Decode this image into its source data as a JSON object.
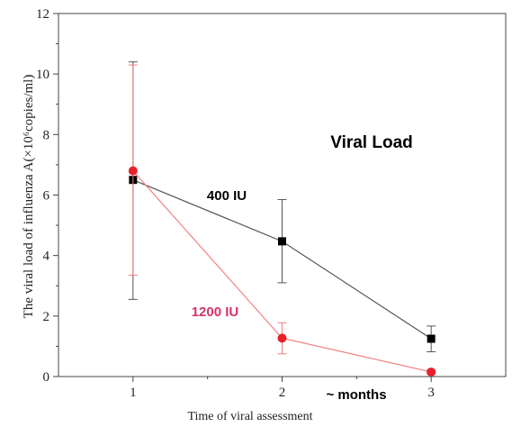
{
  "chart_data": {
    "type": "line",
    "title": "Viral Load",
    "xlabel": "Time of viral assessment",
    "ylabel": "The viral load of influenza A(×10⁶copies/ml)",
    "x_annotation": "~ months",
    "x": [
      1,
      2,
      3
    ],
    "xticks": [
      "1",
      "2",
      "3"
    ],
    "xlim": [
      0.5,
      3.5
    ],
    "ylim": [
      0,
      12
    ],
    "yticks": [
      "0",
      "2",
      "4",
      "6",
      "8",
      "10",
      "12"
    ],
    "grid": false,
    "series": [
      {
        "name": "400 IU",
        "color": "#000000",
        "line_color": "#555555",
        "marker": "square",
        "values": [
          6.5,
          4.47,
          1.25
        ],
        "error_low": [
          2.55,
          3.1,
          0.82
        ],
        "error_high": [
          10.4,
          5.85,
          1.67
        ]
      },
      {
        "name": "1200 IU",
        "color": "#e8202a",
        "line_color": "#f08080",
        "label_color": "#d6336c",
        "marker": "circle",
        "values": [
          6.8,
          1.27,
          0.15
        ],
        "error_low": [
          3.35,
          0.75,
          0.08
        ],
        "error_high": [
          10.3,
          1.78,
          0.22
        ]
      }
    ]
  }
}
